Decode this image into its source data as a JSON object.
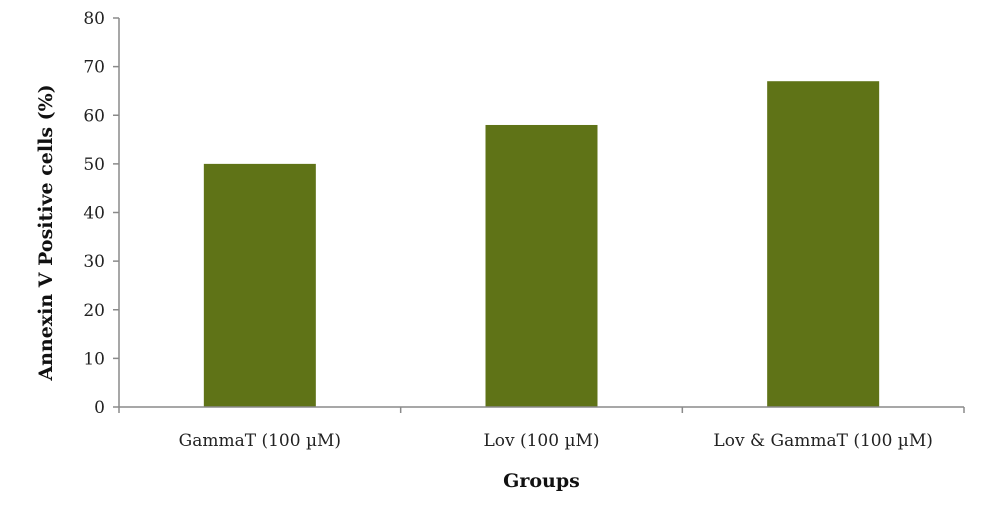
{
  "chart_data": {
    "type": "bar",
    "categories": [
      "GammaT (100 µM)",
      "Lov (100 µM)",
      "Lov & GammaT (100 µM)"
    ],
    "series": [
      {
        "values": [
          50,
          58,
          67
        ],
        "color": "#5f7317"
      }
    ],
    "xlabel": "Groups",
    "ylabel": "Annexin V Positive cells (%)",
    "ylim": [
      0,
      80
    ],
    "yticks": [
      0,
      10,
      20,
      30,
      40,
      50,
      60,
      70,
      80
    ],
    "grid": false,
    "legend": "none"
  }
}
